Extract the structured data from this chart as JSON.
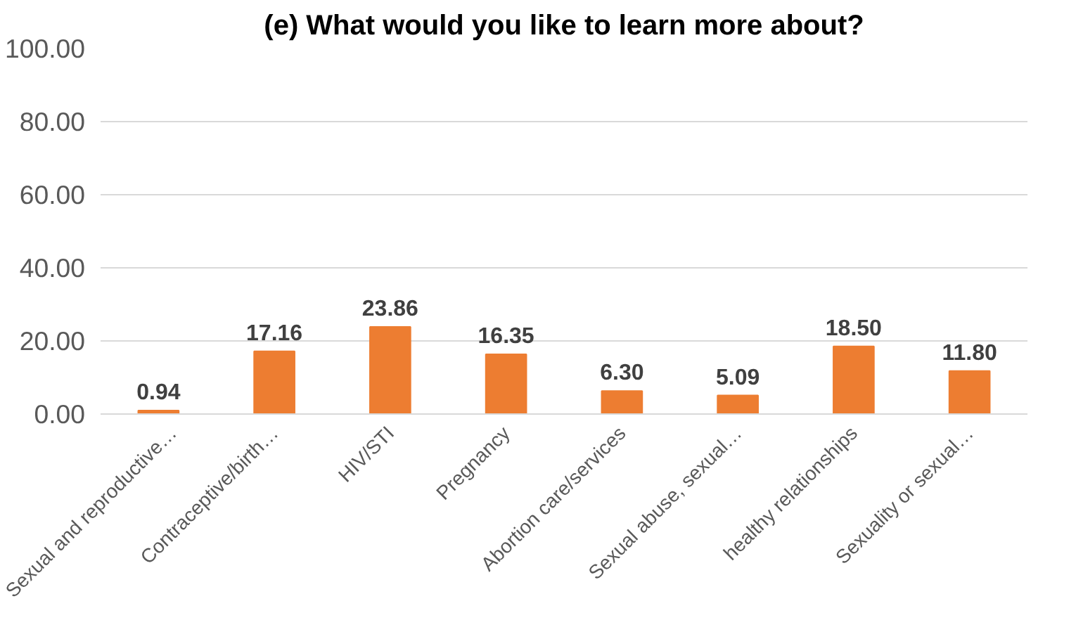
{
  "chart_data": {
    "type": "bar",
    "title": "(e) What would you like to learn more about?",
    "categories": [
      "Sexual and reproductive…",
      "Contraceptive/birth…",
      "HIV/STI",
      "Pregnancy",
      "Abortion care/services",
      "Sexual abuse, sexual…",
      "healthy relationships",
      "Sexuality or sexual…"
    ],
    "values": [
      0.94,
      17.16,
      23.86,
      16.35,
      6.3,
      5.09,
      18.5,
      11.8
    ],
    "value_labels": [
      "0.94",
      "17.16",
      "23.86",
      "16.35",
      "6.30",
      "5.09",
      "18.50",
      "11.80"
    ],
    "color": "#ed7d31",
    "ylim": [
      0,
      100
    ],
    "yticks": [
      {
        "value": 0,
        "label": "0.00"
      },
      {
        "value": 20,
        "label": "20.00"
      },
      {
        "value": 40,
        "label": "40.00"
      },
      {
        "value": 60,
        "label": "60.00"
      },
      {
        "value": 80,
        "label": "80.00"
      },
      {
        "value": 100,
        "label": "100.00"
      }
    ],
    "grid": "y"
  }
}
